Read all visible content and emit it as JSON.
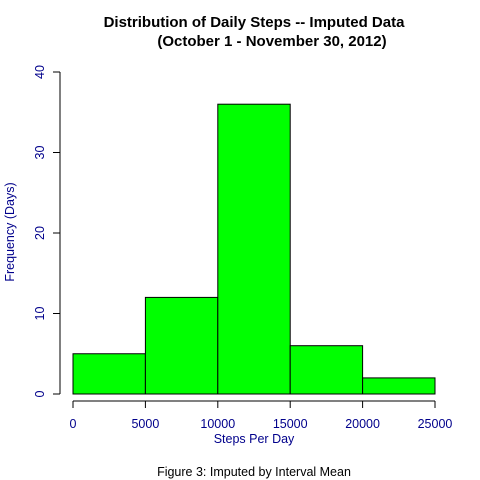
{
  "chart_data": {
    "type": "bar",
    "title": "Distribution of Daily Steps -- Imputed Data",
    "subtitle": "(October 1 - November 30, 2012)",
    "xlabel": "Steps Per Day",
    "ylabel": "Frequency (Days)",
    "caption": "Figure 3: Imputed by Interval Mean",
    "bins": [
      {
        "from": 0,
        "to": 5000,
        "count": 5
      },
      {
        "from": 5000,
        "to": 10000,
        "count": 12
      },
      {
        "from": 10000,
        "to": 15000,
        "count": 36
      },
      {
        "from": 15000,
        "to": 20000,
        "count": 6
      },
      {
        "from": 20000,
        "to": 25000,
        "count": 2
      }
    ],
    "xlim": [
      0,
      25000
    ],
    "ylim": [
      0,
      40
    ],
    "xticks": [
      "0",
      "5000",
      "10000",
      "15000",
      "20000",
      "25000"
    ],
    "yticks": [
      "0",
      "10",
      "20",
      "30",
      "40"
    ],
    "grid": false,
    "bar_color": "#00ff00",
    "bar_edge_color": "#000000",
    "axis_text_color": "#00008b"
  }
}
